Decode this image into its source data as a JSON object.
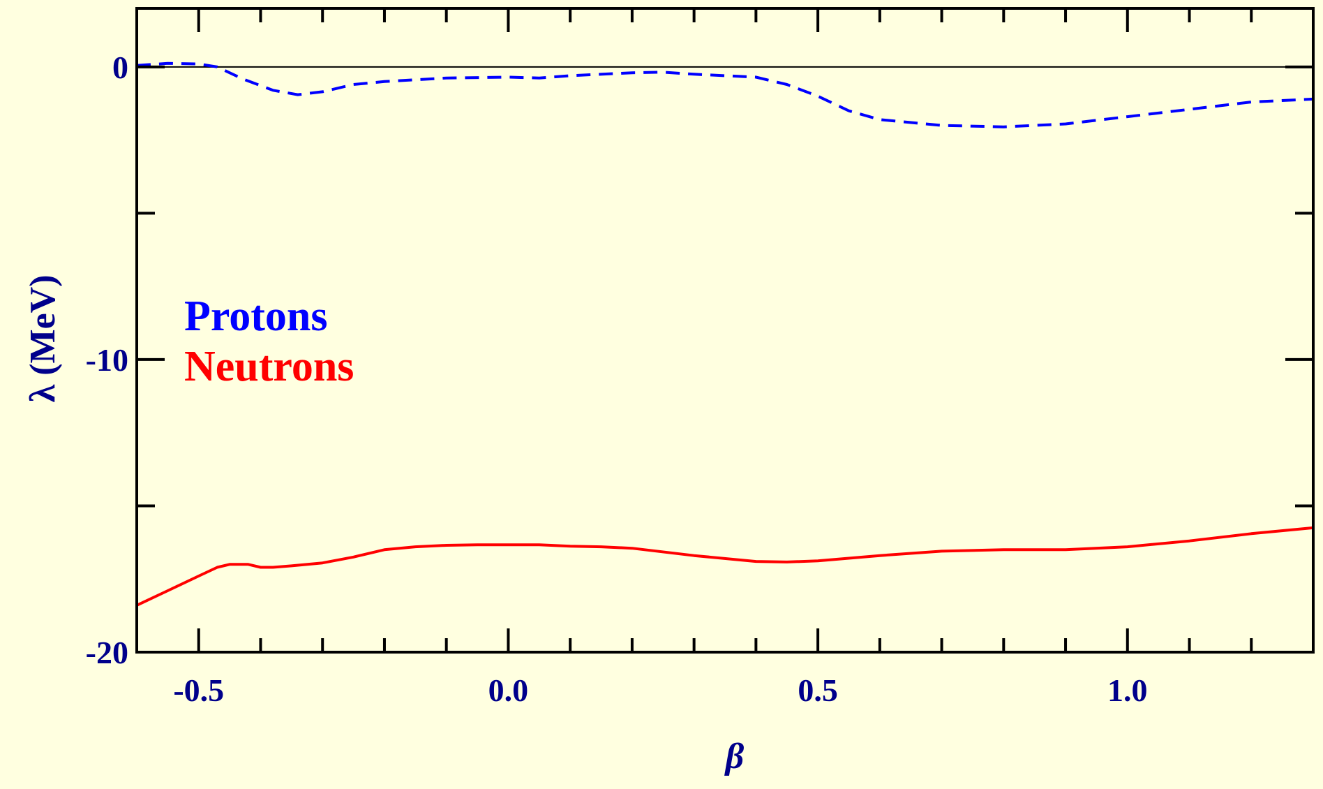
{
  "chart_data": {
    "type": "line",
    "xlabel": "β",
    "ylabel": "λ (MeV)",
    "xlim": [
      -0.6,
      1.3
    ],
    "ylim": [
      -20,
      2
    ],
    "x_ticks": [
      -0.5,
      0.0,
      0.5,
      1.0
    ],
    "x_tick_labels": [
      "-0.5",
      "0.0",
      "0.5",
      "1.0"
    ],
    "y_ticks": [
      0,
      -10,
      -20
    ],
    "y_tick_labels": [
      "0",
      "-10",
      "-20"
    ],
    "reference_line_y": 0,
    "grid": false,
    "legend_position": "middle-left",
    "series": [
      {
        "name": "Protons",
        "color": "#0000ff",
        "style": "dashed",
        "x": [
          -0.6,
          -0.55,
          -0.5,
          -0.47,
          -0.43,
          -0.38,
          -0.34,
          -0.3,
          -0.25,
          -0.2,
          -0.1,
          0.0,
          0.05,
          0.1,
          0.2,
          0.25,
          0.3,
          0.4,
          0.45,
          0.5,
          0.55,
          0.6,
          0.7,
          0.8,
          0.9,
          1.0,
          1.1,
          1.2,
          1.3
        ],
        "y": [
          0.05,
          0.12,
          0.1,
          0.0,
          -0.4,
          -0.8,
          -0.95,
          -0.85,
          -0.6,
          -0.5,
          -0.38,
          -0.35,
          -0.38,
          -0.3,
          -0.2,
          -0.18,
          -0.25,
          -0.35,
          -0.6,
          -1.0,
          -1.5,
          -1.8,
          -2.0,
          -2.05,
          -1.95,
          -1.7,
          -1.45,
          -1.2,
          -1.1
        ]
      },
      {
        "name": "Neutrons",
        "color": "#ff0000",
        "style": "solid",
        "x": [
          -0.6,
          -0.55,
          -0.5,
          -0.47,
          -0.45,
          -0.42,
          -0.4,
          -0.38,
          -0.35,
          -0.3,
          -0.25,
          -0.2,
          -0.15,
          -0.1,
          -0.05,
          0.0,
          0.05,
          0.1,
          0.15,
          0.2,
          0.3,
          0.4,
          0.45,
          0.5,
          0.6,
          0.7,
          0.8,
          0.9,
          1.0,
          1.1,
          1.2,
          1.3
        ],
        "y": [
          -18.4,
          -17.9,
          -17.4,
          -17.1,
          -17.0,
          -17.0,
          -17.1,
          -17.1,
          -17.05,
          -16.95,
          -16.75,
          -16.5,
          -16.4,
          -16.35,
          -16.33,
          -16.33,
          -16.33,
          -16.38,
          -16.4,
          -16.45,
          -16.7,
          -16.9,
          -16.92,
          -16.88,
          -16.7,
          -16.55,
          -16.5,
          -16.5,
          -16.4,
          -16.2,
          -15.95,
          -15.75
        ]
      }
    ]
  }
}
